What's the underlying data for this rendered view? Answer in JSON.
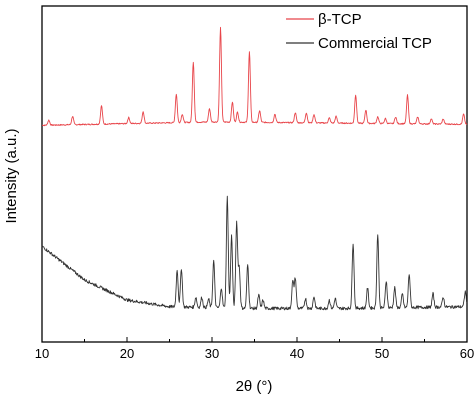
{
  "chart_data": {
    "type": "line",
    "xlabel": "2θ (°)",
    "ylabel": "Intensity (a.u.)",
    "xlim": [
      10,
      60
    ],
    "xticks": [
      10,
      20,
      30,
      40,
      50,
      60
    ],
    "y_ticks_labeled": false,
    "ylim": [
      0,
      100
    ],
    "legend_position": "top-right",
    "series": [
      {
        "name": "β-TCP",
        "color": "#e8454a",
        "baseline": [
          [
            10,
            64.5
          ],
          [
            30,
            65.5
          ],
          [
            60,
            64.8
          ]
        ],
        "peaks": [
          [
            10.8,
            1.5
          ],
          [
            13.6,
            2.5
          ],
          [
            17.0,
            5.5
          ],
          [
            20.2,
            1.8
          ],
          [
            21.9,
            3.5
          ],
          [
            25.8,
            8.5
          ],
          [
            26.5,
            2.5
          ],
          [
            27.8,
            18.0
          ],
          [
            29.7,
            4.0
          ],
          [
            31.0,
            28.0
          ],
          [
            32.4,
            6.0
          ],
          [
            33.0,
            3.0
          ],
          [
            34.4,
            21.0
          ],
          [
            35.6,
            3.5
          ],
          [
            37.4,
            2.5
          ],
          [
            39.8,
            3.0
          ],
          [
            41.1,
            3.0
          ],
          [
            42.0,
            2.5
          ],
          [
            43.8,
            1.5
          ],
          [
            44.6,
            2.0
          ],
          [
            46.9,
            8.5
          ],
          [
            48.1,
            4.0
          ],
          [
            49.5,
            2.0
          ],
          [
            50.4,
            1.5
          ],
          [
            51.6,
            2.0
          ],
          [
            53.0,
            8.5
          ],
          [
            54.2,
            2.0
          ],
          [
            55.8,
            1.5
          ],
          [
            57.2,
            1.5
          ],
          [
            59.6,
            3.0
          ]
        ]
      },
      {
        "name": "Commercial TCP",
        "color": "#333333",
        "baseline": [
          [
            10,
            28.5
          ],
          [
            15,
            18.5
          ],
          [
            20,
            12.5
          ],
          [
            25,
            10.5
          ],
          [
            35,
            10.0
          ],
          [
            45,
            10.0
          ],
          [
            60,
            10.5
          ]
        ],
        "peaks": [
          [
            25.9,
            11.0
          ],
          [
            26.4,
            11.5
          ],
          [
            28.1,
            3.0
          ],
          [
            28.8,
            3.0
          ],
          [
            29.6,
            2.5
          ],
          [
            30.2,
            14.0
          ],
          [
            31.1,
            6.0
          ],
          [
            31.8,
            33.0
          ],
          [
            32.3,
            21.5
          ],
          [
            32.9,
            25.5
          ],
          [
            33.2,
            12.0
          ],
          [
            34.2,
            13.0
          ],
          [
            35.5,
            4.0
          ],
          [
            36.0,
            2.5
          ],
          [
            39.5,
            8.0
          ],
          [
            39.8,
            9.0
          ],
          [
            41.0,
            3.0
          ],
          [
            42.0,
            3.5
          ],
          [
            43.8,
            2.5
          ],
          [
            44.5,
            3.0
          ],
          [
            46.6,
            19.5
          ],
          [
            48.3,
            6.0
          ],
          [
            49.5,
            22.0
          ],
          [
            50.5,
            8.0
          ],
          [
            51.5,
            6.0
          ],
          [
            52.4,
            4.0
          ],
          [
            53.2,
            10.0
          ],
          [
            56.0,
            4.0
          ],
          [
            57.2,
            3.0
          ],
          [
            59.8,
            4.5
          ]
        ]
      }
    ]
  }
}
